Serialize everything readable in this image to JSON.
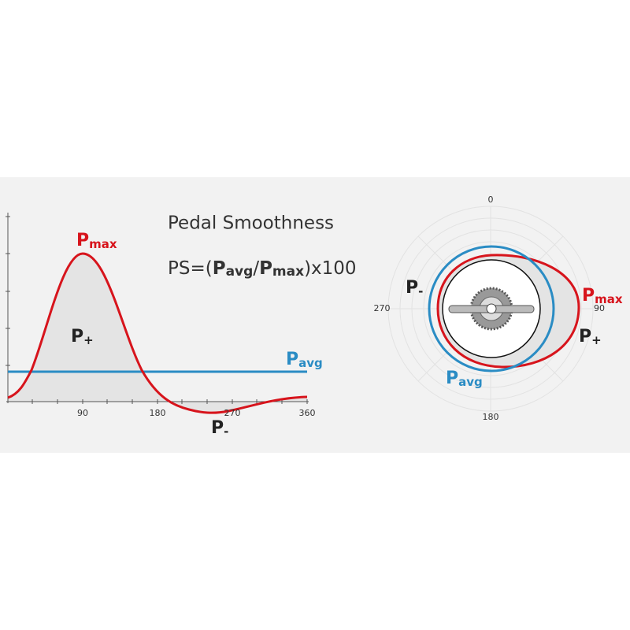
{
  "title": "Pedal Smoothness",
  "formula": {
    "prefix": "PS=(",
    "num": {
      "main": "P",
      "sub": "avg"
    },
    "slash": "/",
    "den": {
      "main": "P",
      "sub": "max"
    },
    "suffix": ")x100"
  },
  "curve_chart": {
    "pmax": {
      "main": "P",
      "sub": "max"
    },
    "pplus": {
      "main": "P",
      "sub": "+"
    },
    "pavg": {
      "main": "P",
      "sub": "avg"
    },
    "pminus": {
      "main": "P",
      "sub": "-"
    },
    "xticks": [
      90,
      180,
      270,
      360
    ]
  },
  "polar_chart": {
    "angles": [
      0,
      90,
      180,
      270
    ],
    "pminus": {
      "main": "P",
      "sub": "-"
    },
    "pmax": {
      "main": "P",
      "sub": "max"
    },
    "pplus": {
      "main": "P",
      "sub": "+"
    },
    "pavg": {
      "main": "P",
      "sub": "avg"
    }
  }
}
